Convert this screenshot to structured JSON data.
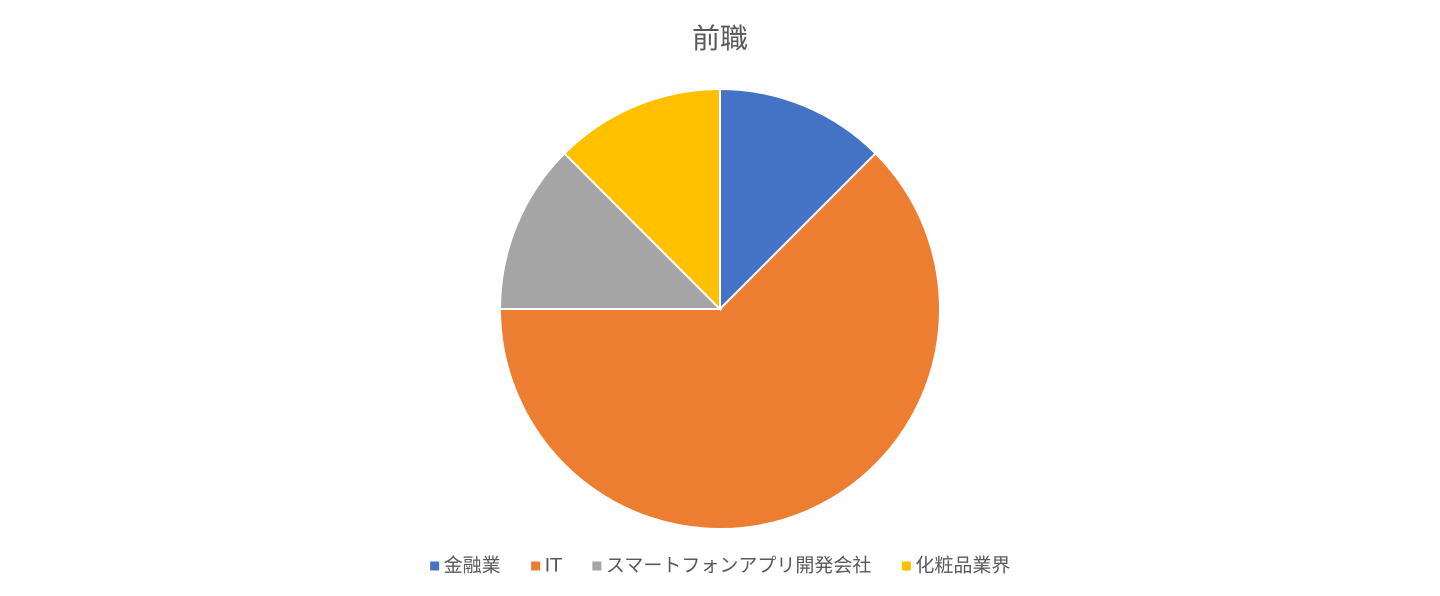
{
  "chart_data": {
    "type": "pie",
    "title": "前職",
    "categories": [
      "金融業",
      "IT",
      "スマートフォンアプリ開発会社",
      "化粧品業界"
    ],
    "values": [
      12.5,
      62.5,
      12.5,
      12.5
    ],
    "colors": [
      "#4472c4",
      "#ed7d31",
      "#a5a5a5",
      "#ffc000"
    ],
    "legend": "bottom"
  }
}
